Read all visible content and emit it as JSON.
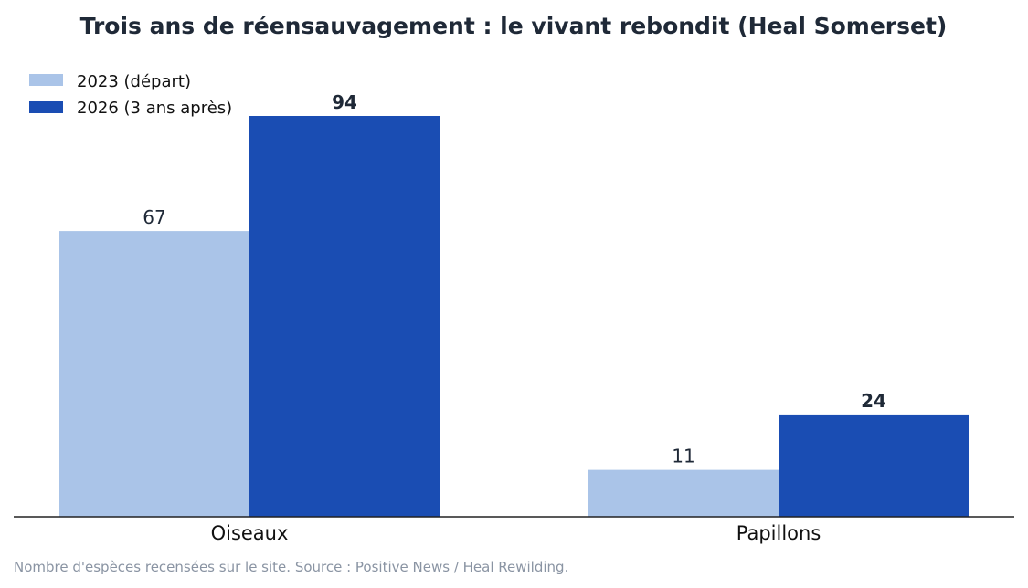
{
  "chart_data": {
    "type": "bar",
    "title": "Trois ans de réensauvagement : le vivant rebondit (Heal Somerset)",
    "categories": [
      "Oiseaux",
      "Papillons"
    ],
    "series": [
      {
        "name": "2023 (départ)",
        "values": [
          67,
          11
        ],
        "color": "#aac4e8",
        "label_style": "normal"
      },
      {
        "name": "2026 (3 ans après)",
        "values": [
          94,
          24
        ],
        "color": "#1a4db3",
        "label_style": "bold"
      }
    ],
    "ylim": [
      0,
      100
    ],
    "xlabel": "",
    "ylabel": "",
    "grid": false,
    "legend": "top-left",
    "source": "Nombre d'espèces recensées sur le site. Source : Positive News / Heal Rewilding."
  }
}
